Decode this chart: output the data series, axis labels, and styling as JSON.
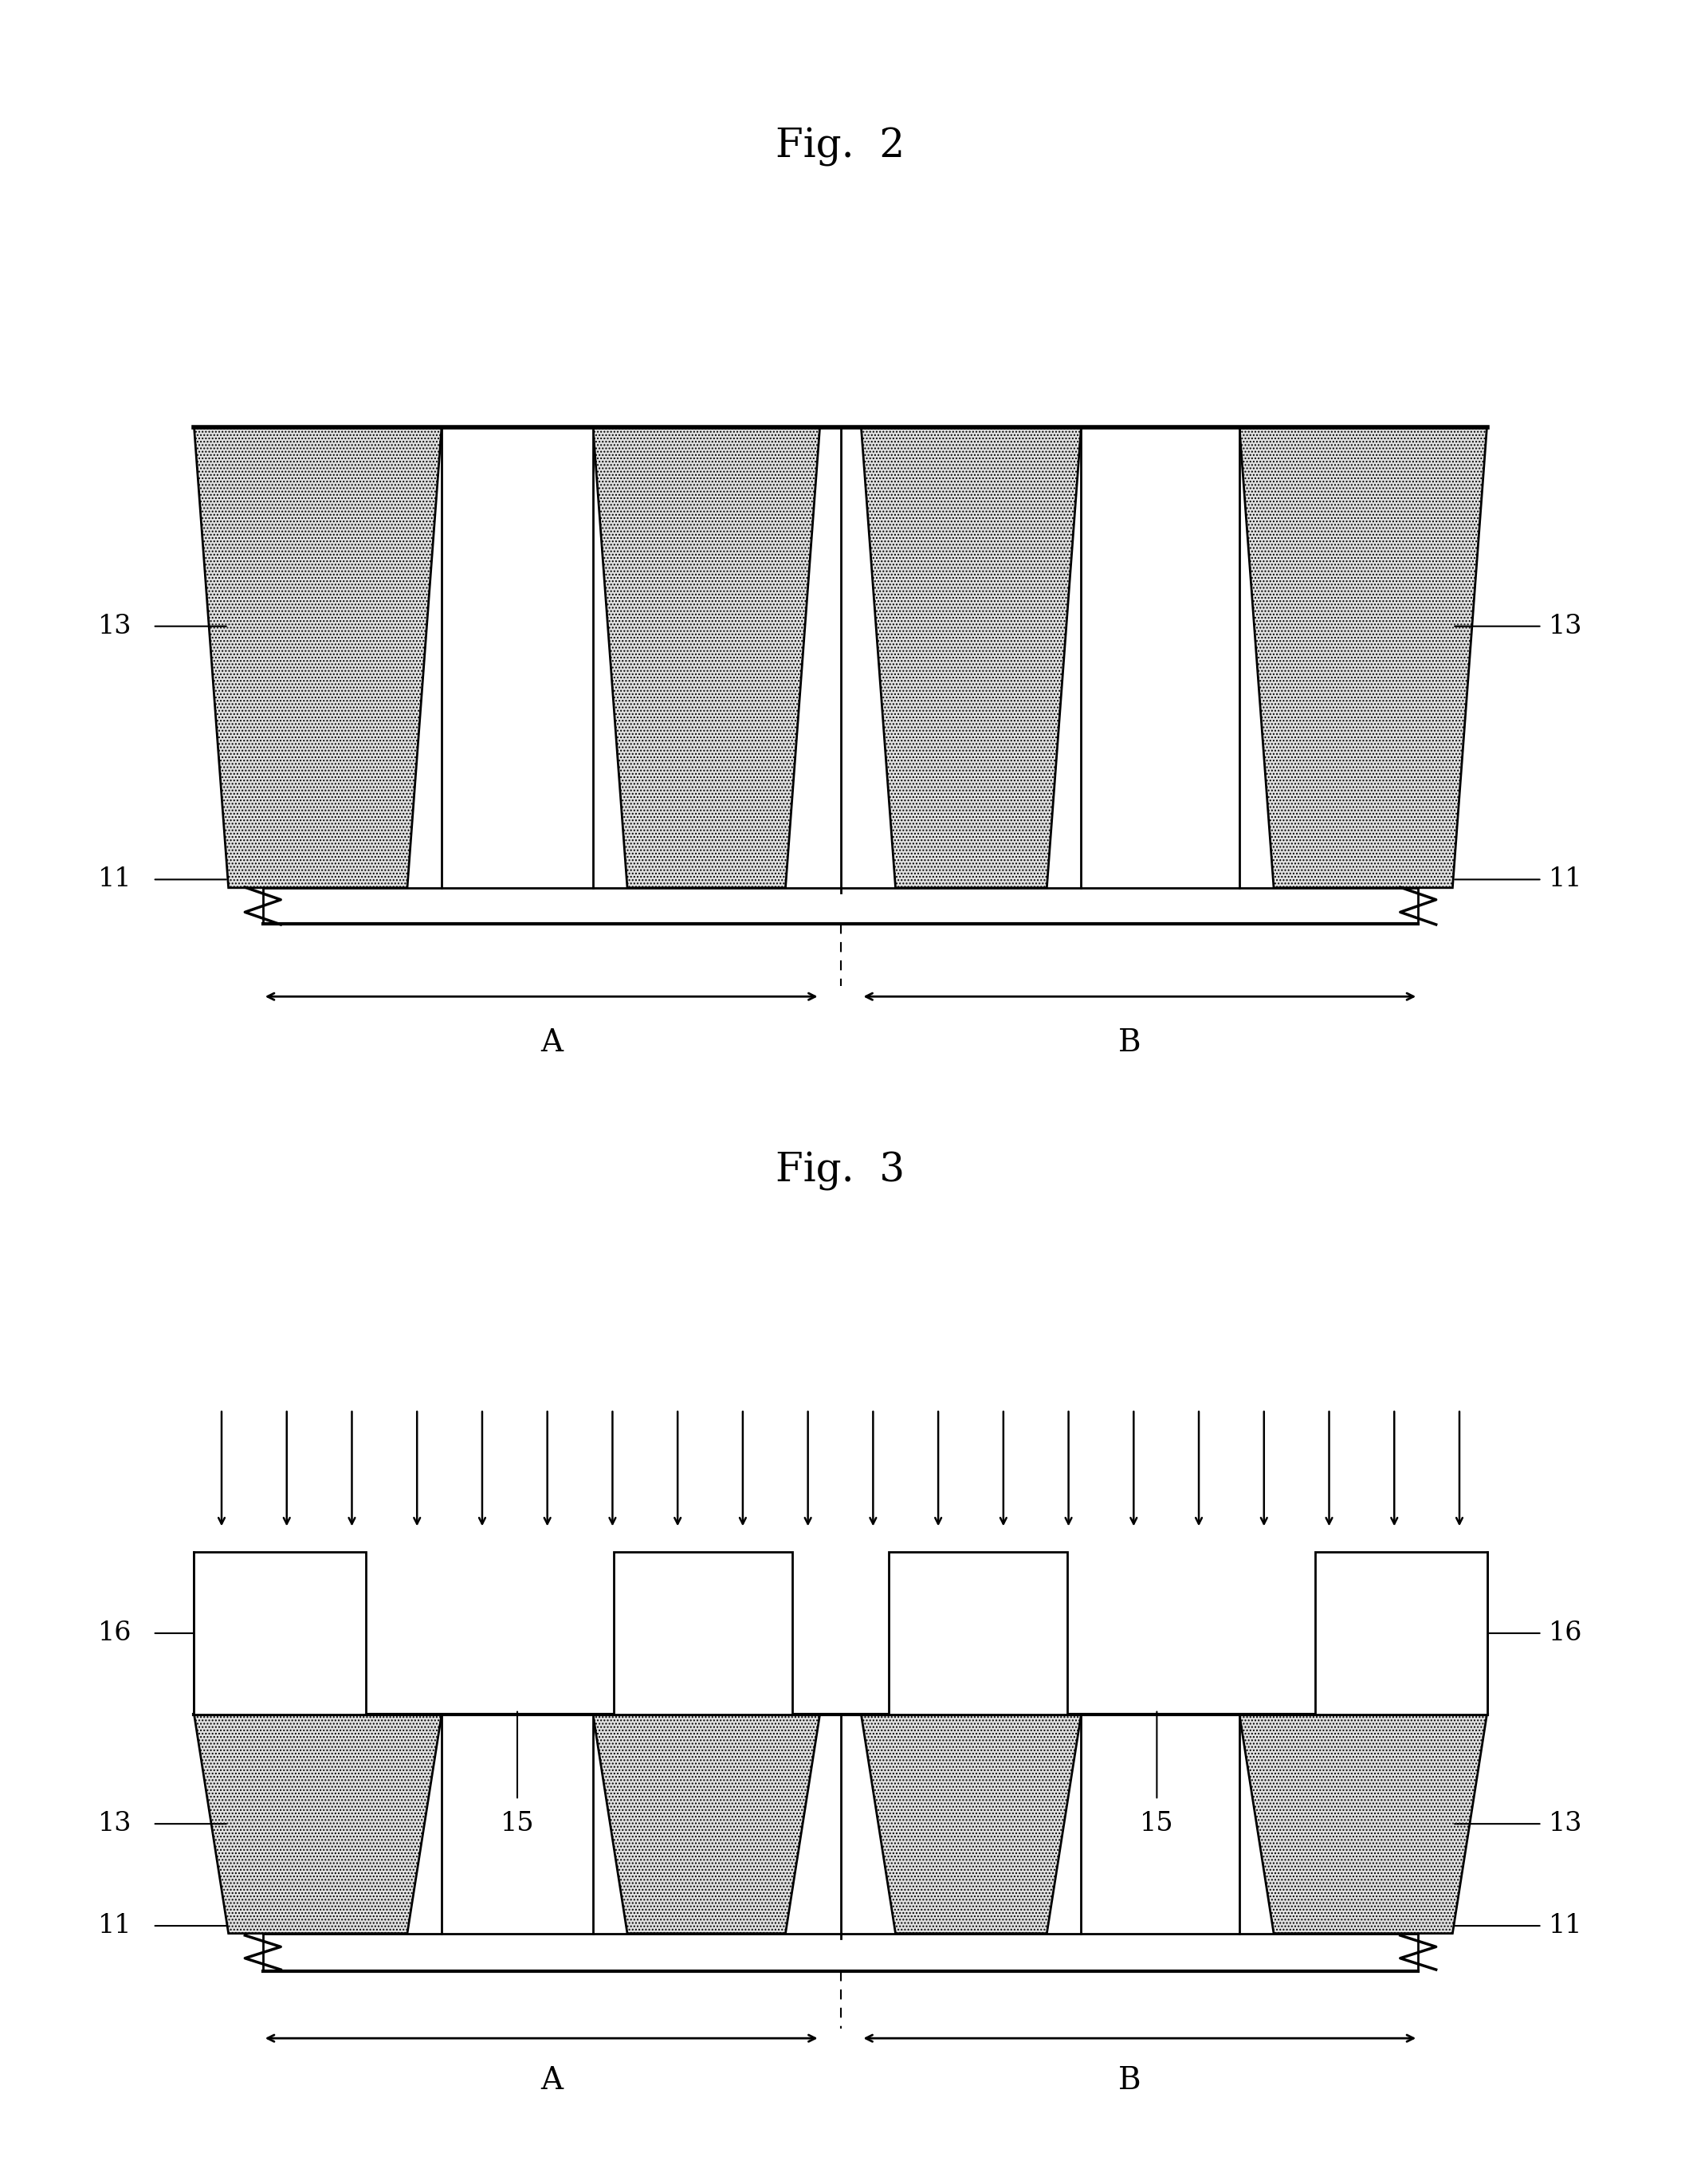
{
  "fig_title1": "Fig.  2",
  "fig_title2": "Fig.  3",
  "background_color": "#ffffff",
  "line_color": "#000000",
  "hatch": "....",
  "label_13": "13",
  "label_11": "11",
  "label_15": "15",
  "label_16": "16",
  "label_A": "A",
  "label_B": "B",
  "title_fontsize": 36,
  "label_fontsize": 24,
  "arrow_label_fontsize": 28
}
